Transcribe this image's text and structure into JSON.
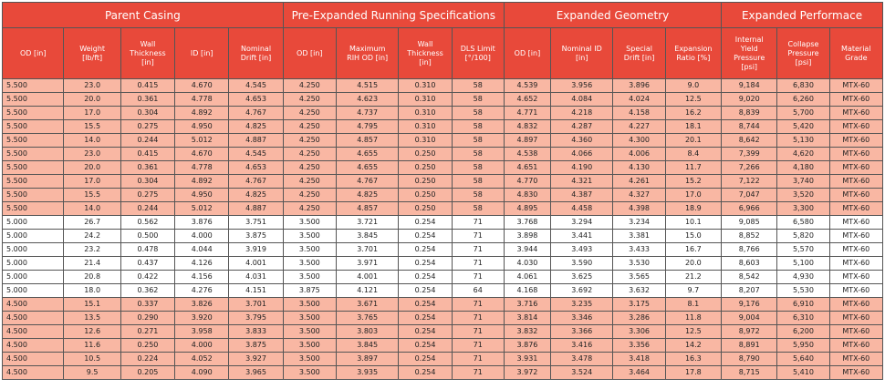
{
  "table": {
    "groups": [
      {
        "title": "Parent Casing",
        "span": 5
      },
      {
        "title": "Pre-Expanded Running Specifications",
        "span": 4
      },
      {
        "title": "Expanded Geometry",
        "span": 4
      },
      {
        "title": "Expanded Performace",
        "span": 3
      }
    ],
    "columns": [
      "OD [in]",
      "Weight [lb/ft]",
      "Wall Thickness [in]",
      "ID [in]",
      "Nominal Drift [in]",
      "OD [in]",
      "Maximum RIH OD [in]",
      "Wall Thickness [in]",
      "DLS Limit [°/100]",
      "OD [in]",
      "Nominal ID [in]",
      "Special Drift [in]",
      "Expansion Ratio [%]",
      "Internal Yield Pressure [psi]",
      "Collapse Pressure [psi]",
      "Material Grade"
    ],
    "rows": [
      [
        "5.500",
        "23.0",
        "0.415",
        "4.670",
        "4.545",
        "4.250",
        "4.515",
        "0.310",
        "58",
        "4.539",
        "3.956",
        "3.896",
        "9.0",
        "9,184",
        "6,830",
        "MTX-60"
      ],
      [
        "5.500",
        "20.0",
        "0.361",
        "4.778",
        "4.653",
        "4.250",
        "4.623",
        "0.310",
        "58",
        "4.652",
        "4.084",
        "4.024",
        "12.5",
        "9,020",
        "6,260",
        "MTX-60"
      ],
      [
        "5.500",
        "17.0",
        "0.304",
        "4.892",
        "4.767",
        "4.250",
        "4.737",
        "0.310",
        "58",
        "4.771",
        "4.218",
        "4.158",
        "16.2",
        "8,839",
        "5,700",
        "MTX-60"
      ],
      [
        "5.500",
        "15.5",
        "0.275",
        "4.950",
        "4.825",
        "4.250",
        "4.795",
        "0.310",
        "58",
        "4.832",
        "4.287",
        "4.227",
        "18.1",
        "8,744",
        "5,420",
        "MTX-60"
      ],
      [
        "5.500",
        "14.0",
        "0.244",
        "5.012",
        "4.887",
        "4.250",
        "4.857",
        "0.310",
        "58",
        "4.897",
        "4.360",
        "4.300",
        "20.1",
        "8,642",
        "5,130",
        "MTX-60"
      ],
      [
        "5.500",
        "23.0",
        "0.415",
        "4.670",
        "4.545",
        "4.250",
        "4.655",
        "0.250",
        "58",
        "4.538",
        "4.066",
        "4.006",
        "8.4",
        "7,399",
        "4,620",
        "MTX-60"
      ],
      [
        "5.500",
        "20.0",
        "0.361",
        "4.778",
        "4.653",
        "4.250",
        "4.655",
        "0.250",
        "58",
        "4.651",
        "4.190",
        "4.130",
        "11.7",
        "7,266",
        "4,180",
        "MTX-60"
      ],
      [
        "5.500",
        "17.0",
        "0.304",
        "4.892",
        "4.767",
        "4.250",
        "4.767",
        "0.250",
        "58",
        "4.770",
        "4.321",
        "4.261",
        "15.2",
        "7,122",
        "3,740",
        "MTX-60"
      ],
      [
        "5.500",
        "15.5",
        "0.275",
        "4.950",
        "4.825",
        "4.250",
        "4.825",
        "0.250",
        "58",
        "4.830",
        "4.387",
        "4.327",
        "17.0",
        "7,047",
        "3,520",
        "MTX-60"
      ],
      [
        "5.500",
        "14.0",
        "0.244",
        "5.012",
        "4.887",
        "4.250",
        "4.857",
        "0.250",
        "58",
        "4.895",
        "4.458",
        "4.398",
        "18.9",
        "6,966",
        "3,300",
        "MTX-60"
      ],
      [
        "5.000",
        "26.7",
        "0.562",
        "3.876",
        "3.751",
        "3.500",
        "3.721",
        "0.254",
        "71",
        "3.768",
        "3.294",
        "3.234",
        "10.1",
        "9,085",
        "6,580",
        "MTX-60"
      ],
      [
        "5.000",
        "24.2",
        "0.500",
        "4.000",
        "3.875",
        "3.500",
        "3.845",
        "0.254",
        "71",
        "3.898",
        "3.441",
        "3.381",
        "15.0",
        "8,852",
        "5,820",
        "MTX-60"
      ],
      [
        "5.000",
        "23.2",
        "0.478",
        "4.044",
        "3.919",
        "3.500",
        "3.701",
        "0.254",
        "71",
        "3.944",
        "3.493",
        "3.433",
        "16.7",
        "8,766",
        "5,570",
        "MTX-60"
      ],
      [
        "5.000",
        "21.4",
        "0.437",
        "4.126",
        "4.001",
        "3.500",
        "3.971",
        "0.254",
        "71",
        "4.030",
        "3.590",
        "3.530",
        "20.0",
        "8,603",
        "5,100",
        "MTX-60"
      ],
      [
        "5.000",
        "20.8",
        "0.422",
        "4.156",
        "4.031",
        "3.500",
        "4.001",
        "0.254",
        "71",
        "4.061",
        "3.625",
        "3.565",
        "21.2",
        "8,542",
        "4,930",
        "MTX-60"
      ],
      [
        "5.000",
        "18.0",
        "0.362",
        "4.276",
        "4.151",
        "3.875",
        "4.121",
        "0.254",
        "64",
        "4.168",
        "3.692",
        "3.632",
        "9.7",
        "8,207",
        "5,530",
        "MTX-60"
      ],
      [
        "4.500",
        "15.1",
        "0.337",
        "3.826",
        "3.701",
        "3.500",
        "3.671",
        "0.254",
        "71",
        "3.716",
        "3.235",
        "3.175",
        "8.1",
        "9,176",
        "6,910",
        "MTX-60"
      ],
      [
        "4.500",
        "13.5",
        "0.290",
        "3.920",
        "3.795",
        "3.500",
        "3.765",
        "0.254",
        "71",
        "3.814",
        "3.346",
        "3.286",
        "11.8",
        "9,004",
        "6,310",
        "MTX-60"
      ],
      [
        "4.500",
        "12.6",
        "0.271",
        "3.958",
        "3.833",
        "3.500",
        "3.803",
        "0.254",
        "71",
        "3.832",
        "3.366",
        "3.306",
        "12.5",
        "8,972",
        "6,200",
        "MTX-60"
      ],
      [
        "4.500",
        "11.6",
        "0.250",
        "4.000",
        "3.875",
        "3.500",
        "3.845",
        "0.254",
        "71",
        "3.876",
        "3.416",
        "3.356",
        "14.2",
        "8,891",
        "5,950",
        "MTX-60"
      ],
      [
        "4.500",
        "10.5",
        "0.224",
        "4.052",
        "3.927",
        "3.500",
        "3.897",
        "0.254",
        "71",
        "3.931",
        "3.478",
        "3.418",
        "16.3",
        "8,790",
        "5,640",
        "MTX-60"
      ],
      [
        "4.500",
        "9.5",
        "0.205",
        "4.090",
        "3.965",
        "3.500",
        "3.935",
        "0.254",
        "71",
        "3.972",
        "3.524",
        "3.464",
        "17.8",
        "8,715",
        "5,410",
        "MTX-60"
      ]
    ]
  }
}
